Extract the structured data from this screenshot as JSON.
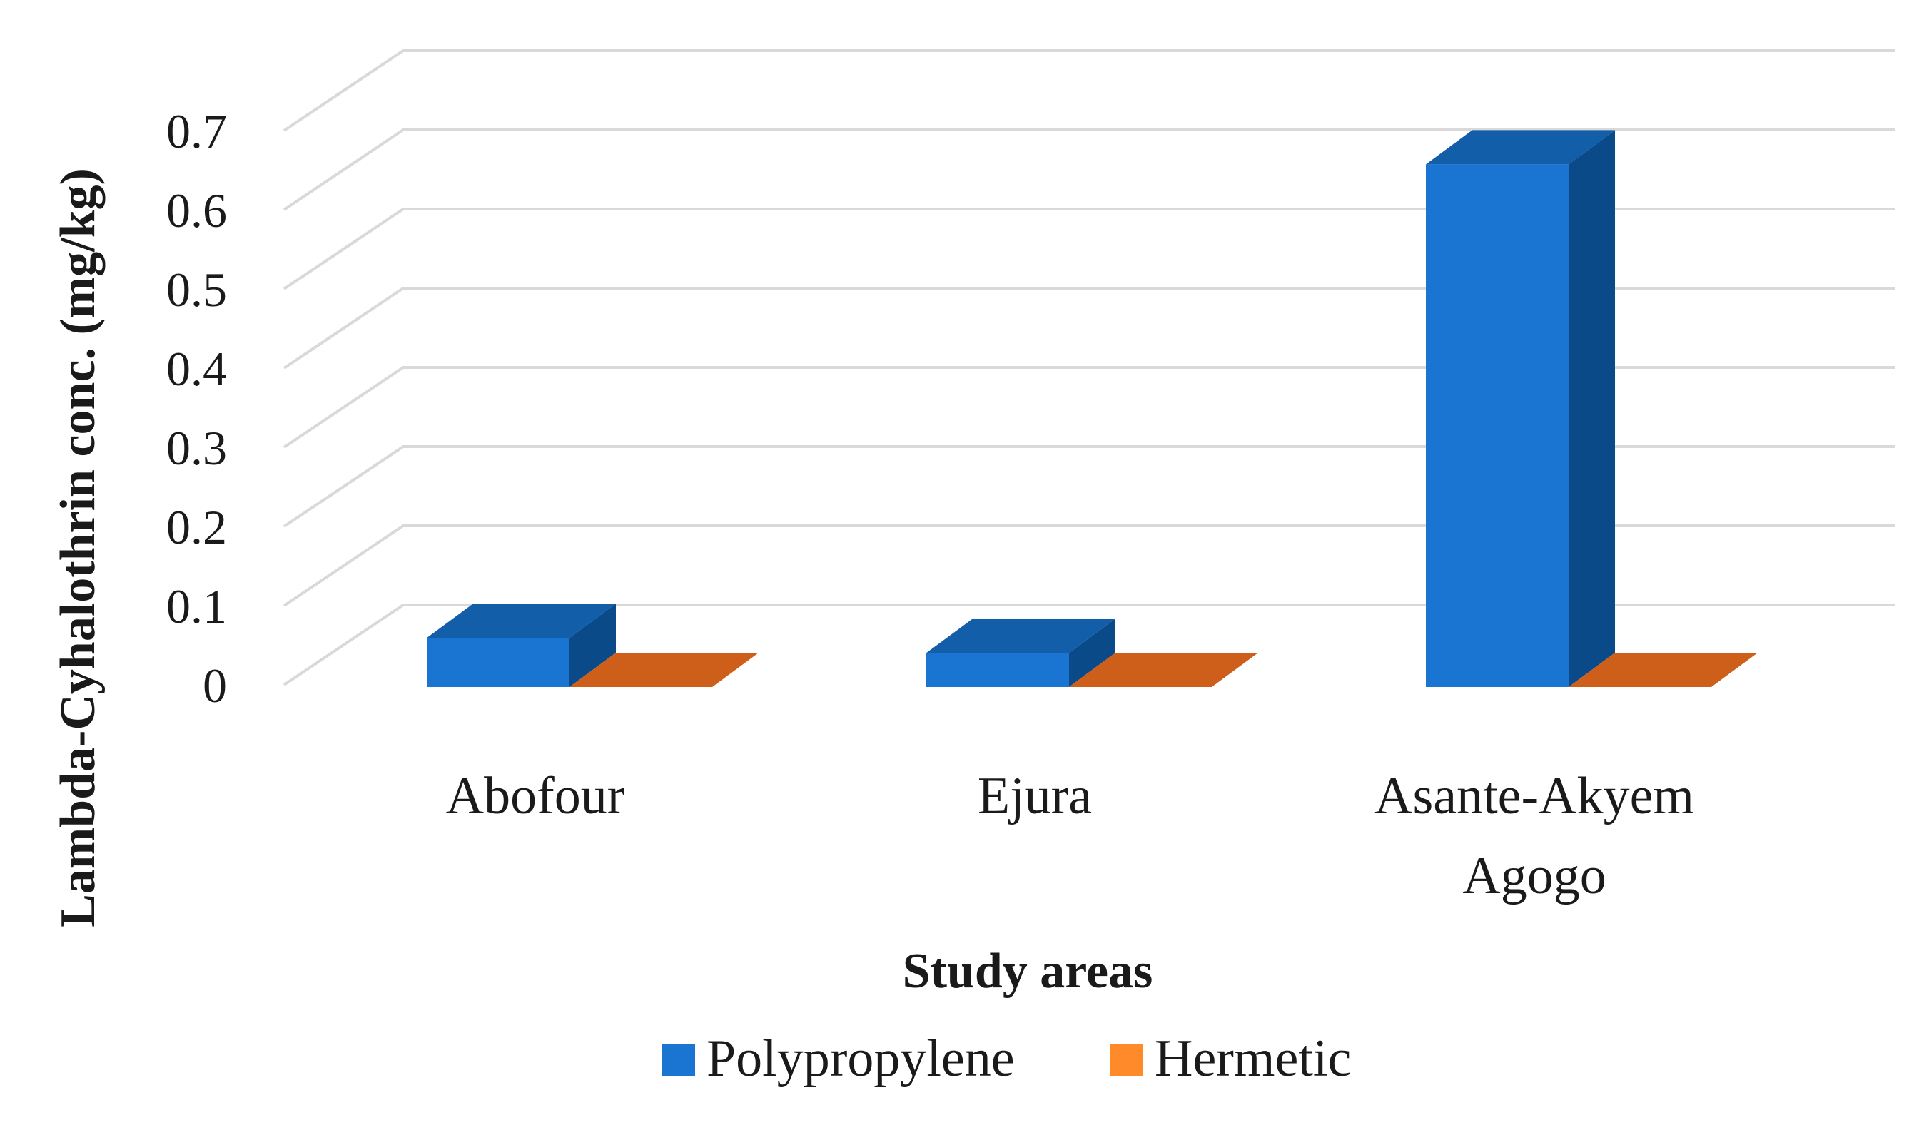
{
  "chart_data": {
    "type": "bar",
    "title": "",
    "xlabel": "Study areas",
    "ylabel": "Lambda-Cyhalothrin conc. (mg/kg)",
    "ylim": [
      0,
      0.7
    ],
    "yticks": [
      "0",
      "0.1",
      "0.2",
      "0.3",
      "0.4",
      "0.5",
      "0.6",
      "0.7"
    ],
    "categories": [
      [
        "Abofour"
      ],
      [
        "Ejura"
      ],
      [
        "Asante-Akyem",
        "Agogo"
      ]
    ],
    "series": [
      {
        "name": "Polypropylene",
        "values": [
          0.062,
          0.043,
          0.66
        ]
      },
      {
        "name": "Hermetic",
        "values": [
          0,
          0,
          0
        ]
      }
    ],
    "grid": true,
    "legend_position": "bottom",
    "colors": {
      "Polypropylene": {
        "front": "#1a74d1",
        "side": "#0b4a88",
        "top": "#135ea8"
      },
      "Hermetic": {
        "front": "#e07b20",
        "side": "#b0531a",
        "top": "#cd5f1a"
      },
      "legend_polypropylene": "#1a74d1",
      "legend_hermetic": "#ff8a2a",
      "grid": "#d9d9d9"
    }
  }
}
